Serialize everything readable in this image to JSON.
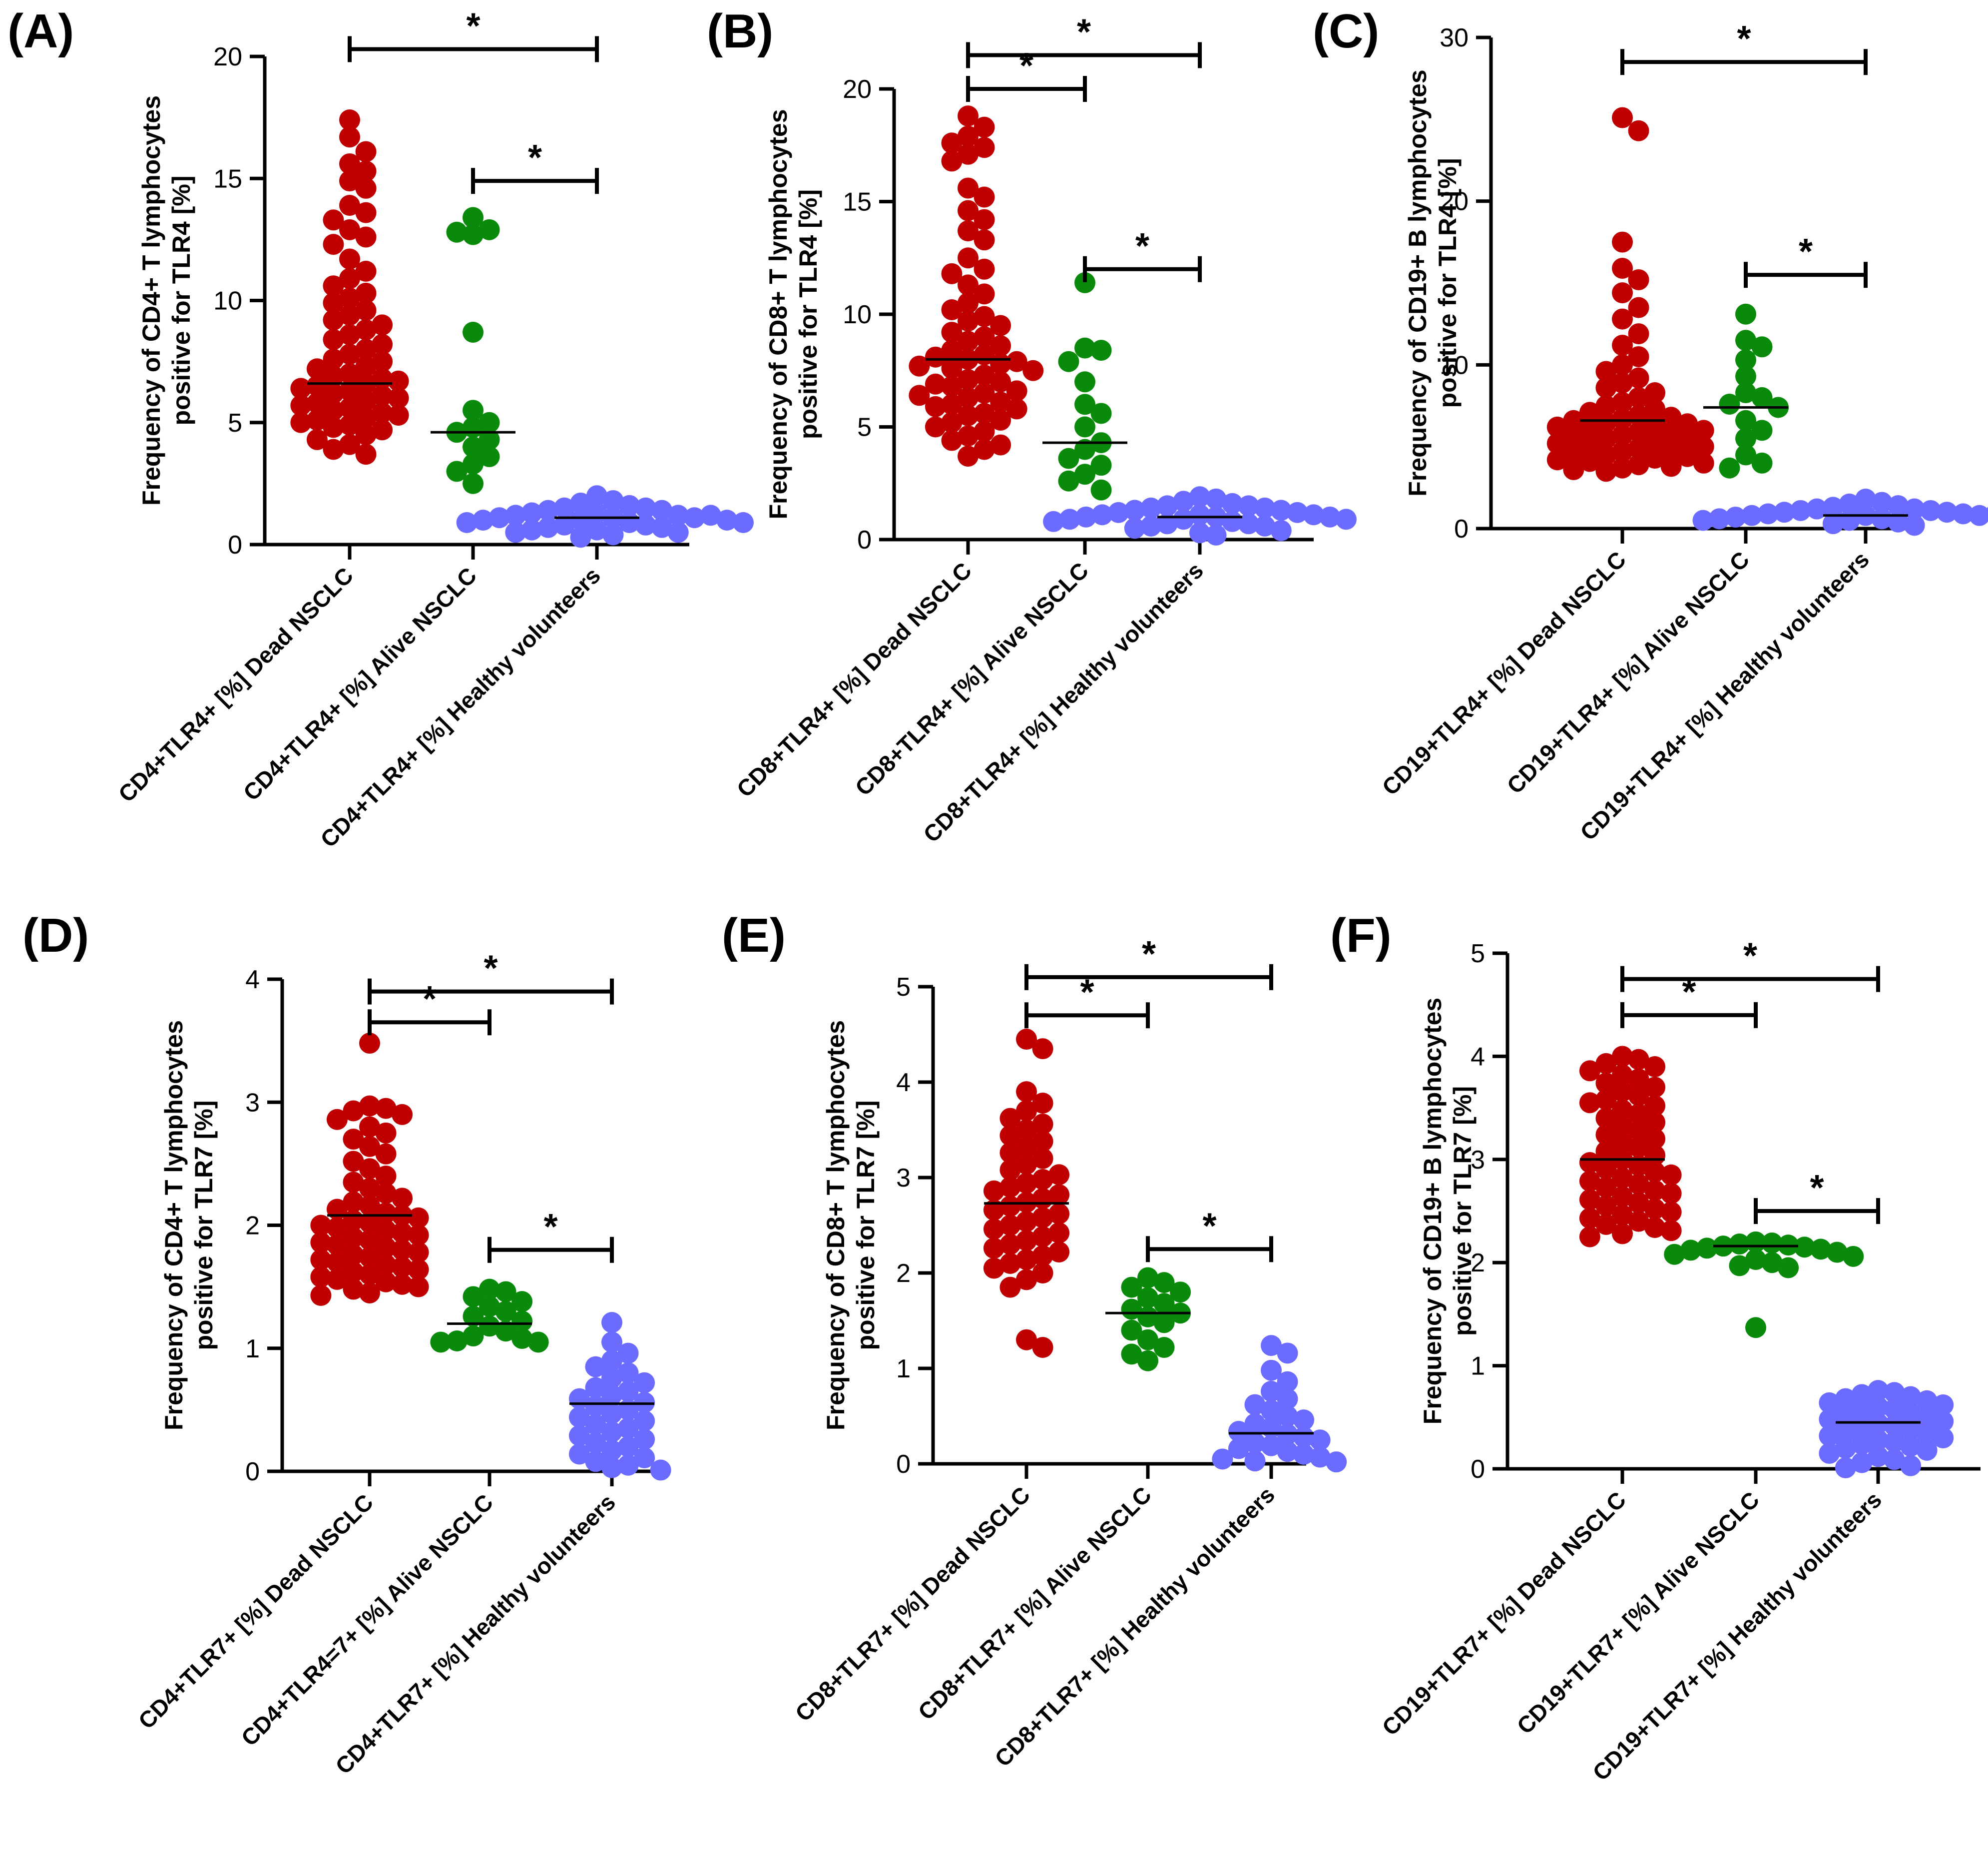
{
  "figure": {
    "colors": {
      "dead": "#c00000",
      "alive": "#0a8a0a",
      "healthy": "#6b6bff",
      "axis": "#000000"
    }
  },
  "chart_data": [
    {
      "type": "scatter",
      "panel_label": "(A)",
      "ylabel_lines": [
        "Frequency of CD4+ T lymphocytes",
        "positive for TLR4 [%]"
      ],
      "ylim": [
        0,
        20
      ],
      "yticks": [
        0,
        5,
        10,
        15,
        20
      ],
      "categories": [
        "CD4+TLR4+ [%] Dead NSCLC",
        "CD4+TLR4+ [%] Alive NSCLC",
        "CD4+TLR4+ [%] Healthy volunteers"
      ],
      "medians": [
        6.6,
        4.6,
        1.1
      ],
      "series": [
        {
          "name": "Dead NSCLC",
          "values": [
            17.4,
            16.7,
            16.1,
            15.6,
            15.3,
            14.9,
            14.6,
            13.9,
            13.6,
            13.3,
            12.9,
            12.6,
            12.3,
            11.7,
            11.2,
            10.9,
            10.6,
            10.3,
            10.1,
            9.9,
            9.6,
            9.4,
            9.2,
            9.0,
            8.8,
            8.6,
            8.4,
            8.2,
            8.0,
            7.8,
            7.6,
            7.5,
            7.3,
            7.2,
            7.0,
            6.9,
            6.8,
            6.7,
            6.6,
            6.5,
            6.4,
            6.3,
            6.2,
            6.1,
            6.0,
            5.9,
            5.8,
            5.7,
            5.6,
            5.5,
            5.4,
            5.3,
            5.2,
            5.1,
            5.0,
            4.9,
            4.8,
            4.7,
            4.5,
            4.3,
            4.1,
            3.9,
            3.7
          ]
        },
        {
          "name": "Alive NSCLC",
          "values": [
            13.4,
            12.9,
            12.8,
            12.7,
            8.7,
            5.5,
            5.0,
            4.8,
            4.6,
            4.3,
            4.0,
            3.6,
            3.3,
            3.0,
            2.5
          ]
        },
        {
          "name": "Healthy volunteers",
          "values": [
            2.0,
            1.8,
            1.7,
            1.6,
            1.5,
            1.5,
            1.4,
            1.4,
            1.3,
            1.3,
            1.2,
            1.2,
            1.2,
            1.1,
            1.1,
            1.1,
            1.0,
            1.0,
            1.0,
            0.9,
            0.9,
            0.9,
            0.8,
            0.8,
            0.7,
            0.7,
            0.6,
            0.6,
            0.5,
            0.5,
            0.4,
            0.3
          ]
        }
      ],
      "significance": [
        {
          "from": 0,
          "to": 2,
          "level": 20.3,
          "label": "*"
        },
        {
          "from": 1,
          "to": 2,
          "level": 14.9,
          "label": "*"
        }
      ]
    },
    {
      "type": "scatter",
      "panel_label": "(B)",
      "ylabel_lines": [
        "Frequency of CD8+ T lymphocytes",
        "positive for TLR4 [%]"
      ],
      "ylim": [
        0,
        20
      ],
      "yticks": [
        0,
        5,
        10,
        15,
        20
      ],
      "categories": [
        "CD8+TLR4+ [%] Dead NSCLC",
        "CD8+TLR4+ [%] Alive NSCLC",
        "CD8+TLR4+ [%] Healthy volunteers"
      ],
      "medians": [
        8.0,
        4.3,
        1.0
      ],
      "series": [
        {
          "name": "Dead NSCLC",
          "values": [
            18.8,
            18.3,
            17.9,
            17.6,
            17.4,
            17.1,
            16.8,
            15.6,
            15.2,
            14.6,
            14.2,
            13.7,
            13.3,
            12.5,
            12.0,
            11.8,
            11.3,
            10.9,
            10.5,
            10.2,
            9.9,
            9.7,
            9.5,
            9.2,
            9.0,
            8.8,
            8.6,
            8.4,
            8.2,
            8.1,
            8.0,
            7.9,
            7.8,
            7.7,
            7.6,
            7.5,
            7.3,
            7.1,
            7.0,
            6.9,
            6.8,
            6.6,
            6.5,
            6.4,
            6.3,
            6.1,
            6.0,
            5.9,
            5.8,
            5.6,
            5.5,
            5.3,
            5.2,
            5.0,
            4.8,
            4.6,
            4.4,
            4.2,
            4.0,
            3.7
          ]
        },
        {
          "name": "Alive NSCLC",
          "values": [
            11.4,
            8.5,
            8.4,
            7.9,
            7.0,
            6.0,
            5.6,
            5.0,
            4.3,
            4.0,
            3.6,
            3.3,
            2.9,
            2.6,
            2.2
          ]
        },
        {
          "name": "Healthy volunteers",
          "values": [
            1.9,
            1.8,
            1.7,
            1.6,
            1.5,
            1.5,
            1.4,
            1.4,
            1.3,
            1.3,
            1.2,
            1.2,
            1.1,
            1.1,
            1.1,
            1.0,
            1.0,
            1.0,
            0.9,
            0.9,
            0.9,
            0.8,
            0.8,
            0.7,
            0.7,
            0.6,
            0.6,
            0.5,
            0.4,
            0.3,
            0.2
          ]
        }
      ],
      "significance": [
        {
          "from": 0,
          "to": 2,
          "level": 21.5,
          "label": "*"
        },
        {
          "from": 0,
          "to": 1,
          "level": 20.0,
          "label": "*"
        },
        {
          "from": 1,
          "to": 2,
          "level": 12.0,
          "label": "*"
        }
      ]
    },
    {
      "type": "scatter",
      "panel_label": "(C)",
      "ylabel_lines": [
        "Frequency of CD19+ B lymphocytes",
        "positive for TLR4 [%]"
      ],
      "ylim": [
        0,
        30
      ],
      "yticks": [
        0,
        10,
        20,
        30
      ],
      "categories": [
        "CD19+TLR4+ [%] Dead NSCLC",
        "CD19+TLR4+ [%] Alive NSCLC",
        "CD19+TLR4+ [%] Healthy volunteers"
      ],
      "medians": [
        6.6,
        7.4,
        0.8
      ],
      "series": [
        {
          "name": "Dead NSCLC",
          "values": [
            25.1,
            24.3,
            17.5,
            15.9,
            15.2,
            14.4,
            13.5,
            12.8,
            11.9,
            11.2,
            10.5,
            10.0,
            9.6,
            9.2,
            8.9,
            8.6,
            8.3,
            8.0,
            7.7,
            7.5,
            7.3,
            7.1,
            6.9,
            6.8,
            6.7,
            6.6,
            6.5,
            6.4,
            6.3,
            6.2,
            6.1,
            6.0,
            5.9,
            5.8,
            5.7,
            5.6,
            5.5,
            5.4,
            5.3,
            5.2,
            5.1,
            5.0,
            4.9,
            4.8,
            4.7,
            4.6,
            4.5,
            4.4,
            4.3,
            4.2,
            4.1,
            4.0,
            3.9,
            3.8,
            3.7,
            3.6,
            3.5
          ]
        },
        {
          "name": "Alive NSCLC",
          "values": [
            13.1,
            11.5,
            11.1,
            10.3,
            9.3,
            8.3,
            8.0,
            7.6,
            7.4,
            6.6,
            6.0,
            5.5,
            4.5,
            4.0,
            3.7
          ]
        },
        {
          "name": "Healthy volunteers",
          "values": [
            1.8,
            1.6,
            1.5,
            1.4,
            1.3,
            1.2,
            1.2,
            1.1,
            1.1,
            1.0,
            1.0,
            0.9,
            0.9,
            0.9,
            0.8,
            0.8,
            0.8,
            0.7,
            0.7,
            0.7,
            0.6,
            0.6,
            0.5,
            0.5,
            0.4,
            0.4,
            0.3,
            0.2
          ]
        }
      ],
      "significance": [
        {
          "from": 0,
          "to": 2,
          "level": 28.5,
          "label": "*"
        },
        {
          "from": 1,
          "to": 2,
          "level": 15.5,
          "label": "*"
        }
      ]
    },
    {
      "type": "scatter",
      "panel_label": "(D)",
      "ylabel_lines": [
        "Frequency of CD4+ T lymphocytes",
        "positive for TLR7 [%]"
      ],
      "ylim": [
        0,
        4
      ],
      "yticks": [
        0,
        1,
        2,
        3,
        4
      ],
      "categories": [
        "CD4+TLR7+ [%] Dead NSCLC",
        "CD4+TLR4=7+ [%] Alive NSCLC",
        "CD4+TLR7+ [%] Healthy volunteers"
      ],
      "medians": [
        2.08,
        1.2,
        0.55
      ],
      "series": [
        {
          "name": "Dead NSCLC",
          "values": [
            3.48,
            2.97,
            2.95,
            2.93,
            2.9,
            2.86,
            2.8,
            2.75,
            2.7,
            2.64,
            2.58,
            2.52,
            2.46,
            2.4,
            2.35,
            2.3,
            2.26,
            2.22,
            2.19,
            2.16,
            2.13,
            2.1,
            2.08,
            2.06,
            2.04,
            2.02,
            2.0,
            1.98,
            1.96,
            1.94,
            1.92,
            1.9,
            1.88,
            1.86,
            1.84,
            1.82,
            1.8,
            1.78,
            1.76,
            1.74,
            1.72,
            1.7,
            1.68,
            1.66,
            1.64,
            1.62,
            1.6,
            1.58,
            1.56,
            1.54,
            1.52,
            1.5,
            1.48,
            1.45,
            1.43
          ]
        },
        {
          "name": "Alive NSCLC",
          "values": [
            1.48,
            1.46,
            1.42,
            1.38,
            1.34,
            1.3,
            1.26,
            1.22,
            1.18,
            1.14,
            1.1,
            1.08,
            1.06,
            1.05,
            1.05
          ]
        },
        {
          "name": "Healthy volunteers",
          "values": [
            1.21,
            1.05,
            0.96,
            0.9,
            0.85,
            0.8,
            0.76,
            0.72,
            0.68,
            0.65,
            0.62,
            0.59,
            0.56,
            0.53,
            0.5,
            0.47,
            0.44,
            0.41,
            0.38,
            0.35,
            0.32,
            0.29,
            0.26,
            0.23,
            0.2,
            0.17,
            0.14,
            0.11,
            0.08,
            0.05,
            0.03,
            0.01
          ]
        }
      ],
      "significance": [
        {
          "from": 0,
          "to": 2,
          "level": 3.9,
          "label": "*"
        },
        {
          "from": 0,
          "to": 1,
          "level": 3.65,
          "label": "*"
        },
        {
          "from": 1,
          "to": 2,
          "level": 1.8,
          "label": "*"
        }
      ]
    },
    {
      "type": "scatter",
      "panel_label": "(E)",
      "ylabel_lines": [
        "Frequency of CD8+ T lymphocytes",
        "positive for TLR7 [%]"
      ],
      "ylim": [
        0,
        5
      ],
      "yticks": [
        0,
        1,
        2,
        3,
        4,
        5
      ],
      "categories": [
        "CD8+TLR7+ [%] Dead NSCLC",
        "CD8+TLR7+ [%] Alive NSCLC",
        "CD8+TLR7+ [%] Healthy volunteers"
      ],
      "medians": [
        2.73,
        1.58,
        0.32
      ],
      "series": [
        {
          "name": "Dead NSCLC",
          "values": [
            4.45,
            4.35,
            3.9,
            3.78,
            3.7,
            3.62,
            3.56,
            3.5,
            3.44,
            3.38,
            3.32,
            3.26,
            3.2,
            3.14,
            3.08,
            3.03,
            2.98,
            2.94,
            2.9,
            2.86,
            2.82,
            2.78,
            2.74,
            2.7,
            2.66,
            2.62,
            2.58,
            2.54,
            2.5,
            2.46,
            2.42,
            2.38,
            2.34,
            2.3,
            2.26,
            2.22,
            2.18,
            2.14,
            2.1,
            2.05,
            2.0,
            1.93,
            1.85,
            1.3,
            1.22
          ]
        },
        {
          "name": "Alive NSCLC",
          "values": [
            1.95,
            1.9,
            1.85,
            1.8,
            1.74,
            1.68,
            1.62,
            1.58,
            1.54,
            1.48,
            1.4,
            1.3,
            1.22,
            1.15,
            1.08
          ]
        },
        {
          "name": "Healthy volunteers",
          "values": [
            1.24,
            1.16,
            0.98,
            0.86,
            0.76,
            0.68,
            0.62,
            0.56,
            0.5,
            0.46,
            0.42,
            0.38,
            0.34,
            0.31,
            0.28,
            0.25,
            0.22,
            0.19,
            0.16,
            0.13,
            0.1,
            0.07,
            0.05,
            0.03,
            0.02
          ]
        }
      ],
      "significance": [
        {
          "from": 0,
          "to": 2,
          "level": 5.1,
          "label": "*"
        },
        {
          "from": 0,
          "to": 1,
          "level": 4.7,
          "label": "*"
        },
        {
          "from": 1,
          "to": 2,
          "level": 2.25,
          "label": "*"
        }
      ]
    },
    {
      "type": "scatter",
      "panel_label": "(F)",
      "ylabel_lines": [
        "Frequency of CD19+ B lymphocytes",
        "positive for TLR7 [%]"
      ],
      "ylim": [
        0,
        5
      ],
      "yticks": [
        0,
        1,
        2,
        3,
        4,
        5
      ],
      "categories": [
        "CD19+TLR7+ [%] Dead NSCLC",
        "CD19+TLR7+ [%] Alive NSCLC",
        "CD19+TLR7+ [%] Healthy volunteers"
      ],
      "medians": [
        3.0,
        2.16,
        0.45
      ],
      "series": [
        {
          "name": "Dead NSCLC",
          "values": [
            4.0,
            3.97,
            3.93,
            3.9,
            3.86,
            3.82,
            3.78,
            3.74,
            3.7,
            3.66,
            3.62,
            3.58,
            3.55,
            3.52,
            3.48,
            3.44,
            3.4,
            3.36,
            3.32,
            3.28,
            3.24,
            3.2,
            3.16,
            3.12,
            3.08,
            3.04,
            3.0,
            2.97,
            2.94,
            2.91,
            2.88,
            2.85,
            2.82,
            2.79,
            2.76,
            2.73,
            2.7,
            2.67,
            2.64,
            2.61,
            2.58,
            2.55,
            2.52,
            2.49,
            2.46,
            2.43,
            2.4,
            2.37,
            2.34,
            2.31,
            2.28,
            2.25
          ]
        },
        {
          "name": "Alive NSCLC",
          "values": [
            2.2,
            2.19,
            2.18,
            2.17,
            2.16,
            2.15,
            2.14,
            2.13,
            2.12,
            2.1,
            2.08,
            2.06,
            2.03,
            2.0,
            1.97,
            1.95,
            1.37
          ]
        },
        {
          "name": "Healthy volunteers",
          "values": [
            0.76,
            0.74,
            0.72,
            0.7,
            0.68,
            0.66,
            0.64,
            0.62,
            0.6,
            0.58,
            0.56,
            0.54,
            0.52,
            0.5,
            0.48,
            0.46,
            0.44,
            0.42,
            0.4,
            0.38,
            0.36,
            0.34,
            0.32,
            0.3,
            0.28,
            0.26,
            0.24,
            0.22,
            0.2,
            0.18,
            0.15,
            0.12,
            0.09,
            0.06,
            0.03,
            0.01
          ]
        }
      ],
      "significance": [
        {
          "from": 0,
          "to": 2,
          "level": 4.75,
          "label": "*"
        },
        {
          "from": 0,
          "to": 1,
          "level": 4.4,
          "label": "*"
        },
        {
          "from": 1,
          "to": 2,
          "level": 2.5,
          "label": "*"
        }
      ]
    }
  ]
}
